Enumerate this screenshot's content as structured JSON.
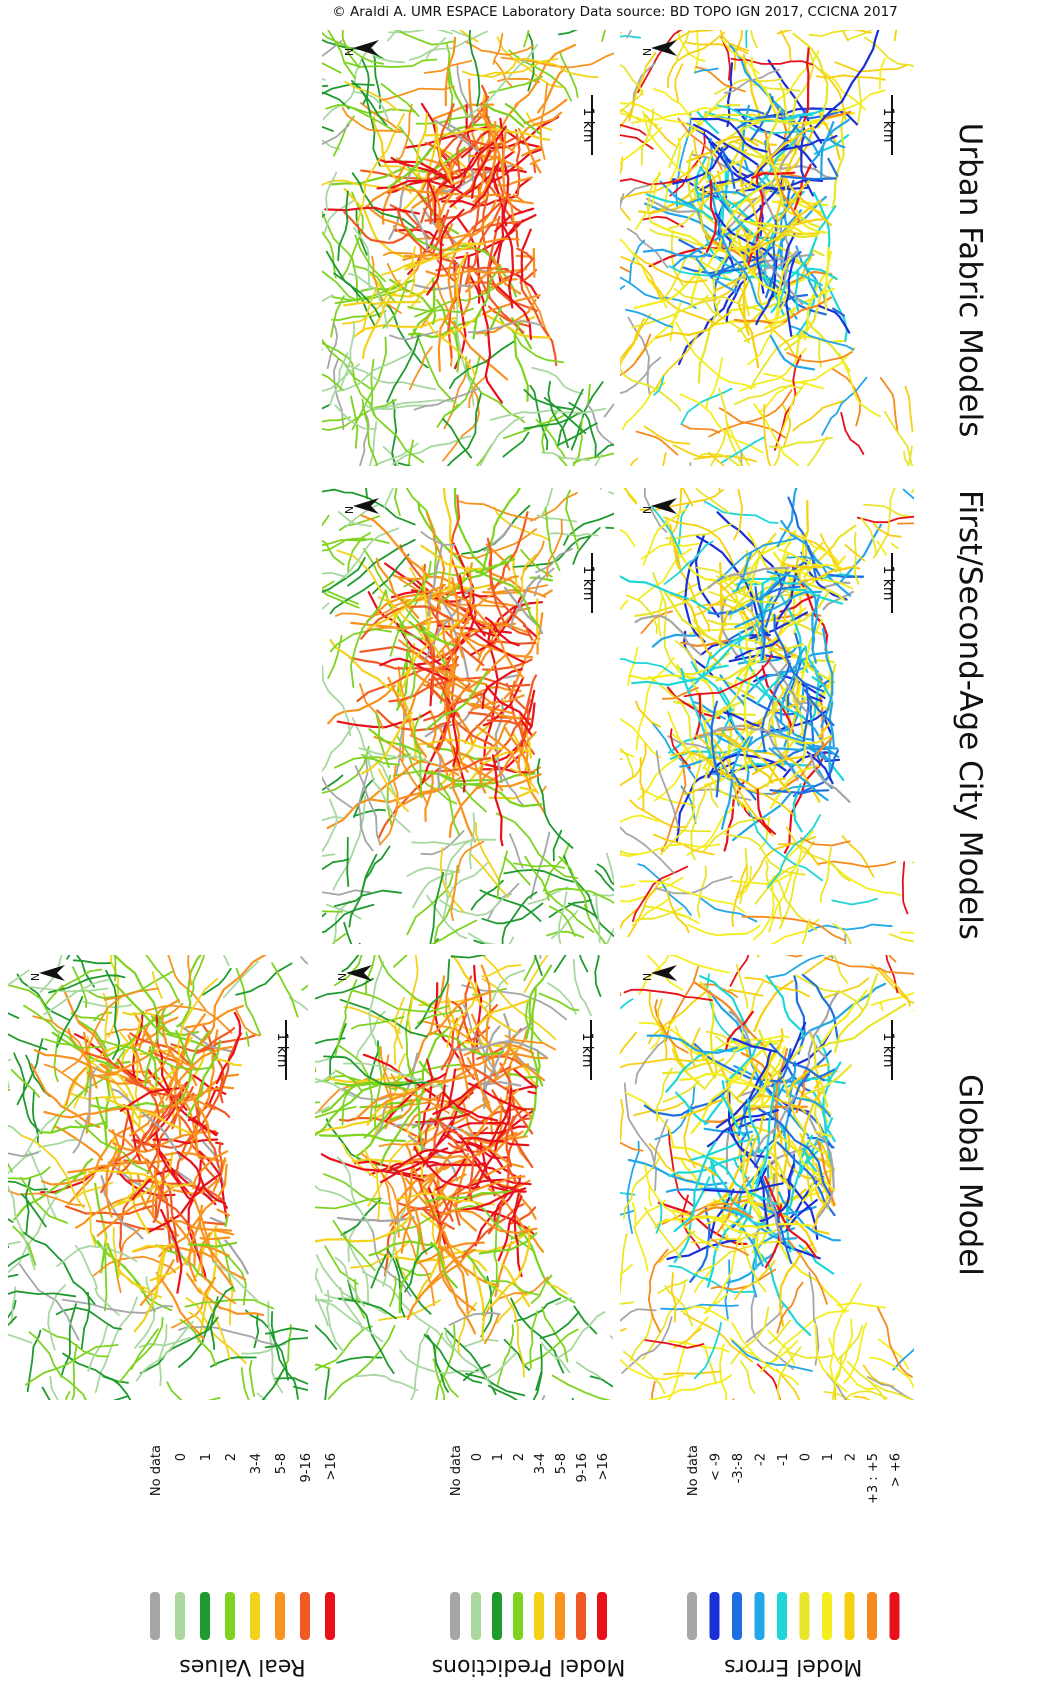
{
  "credit": "© Araldi A.  UMR ESPACE Laboratory Data source: BD TOPO IGN 2017, CCICNA 2017",
  "columns": [
    {
      "title": "Urban Fabric Models"
    },
    {
      "title": "First/Second-Age City Models"
    },
    {
      "title": "Global Model"
    }
  ],
  "panels": [
    {
      "north": "N",
      "scale": "1 km"
    },
    {
      "north": "N",
      "scale": "1 km"
    },
    {
      "north": "N",
      "scale": "1 km"
    },
    {
      "north": "N",
      "scale": "1 km"
    },
    {
      "north": "N",
      "scale": "1 km"
    },
    {
      "north": "N",
      "scale": "1 km"
    },
    {
      "north": "N",
      "scale": "1 km"
    }
  ],
  "legends": [
    {
      "title": "Real Values",
      "items": [
        {
          "label": "No data",
          "color": "#a6a6a6"
        },
        {
          "label": "0",
          "color": "#a8d8a0"
        },
        {
          "label": "1",
          "color": "#1e9a2e"
        },
        {
          "label": "2",
          "color": "#7ed321"
        },
        {
          "label": "3-4",
          "color": "#f2d21b"
        },
        {
          "label": "5-8",
          "color": "#f7931e"
        },
        {
          "label": "9-16",
          "color": "#f15a24"
        },
        {
          "label": ">16",
          "color": "#e8101a"
        }
      ]
    },
    {
      "title": "Model Predictions",
      "items": [
        {
          "label": "No data",
          "color": "#a6a6a6"
        },
        {
          "label": "0",
          "color": "#a8d8a0"
        },
        {
          "label": "1",
          "color": "#1e9a2e"
        },
        {
          "label": "2",
          "color": "#7ed321"
        },
        {
          "label": "3-4",
          "color": "#f2d21b"
        },
        {
          "label": "5-8",
          "color": "#f7931e"
        },
        {
          "label": "9-16",
          "color": "#f15a24"
        },
        {
          "label": ">16",
          "color": "#e8101a"
        }
      ]
    },
    {
      "title": "Model Errors",
      "items": [
        {
          "label": "No data",
          "color": "#a6a6a6"
        },
        {
          "label": "< -9",
          "color": "#1a2fd6"
        },
        {
          "label": "-3:-8",
          "color": "#1f6fe0"
        },
        {
          "label": "-2",
          "color": "#22a6e8"
        },
        {
          "label": "-1",
          "color": "#1fd6d6"
        },
        {
          "label": "0",
          "color": "#e8e62a"
        },
        {
          "label": "1",
          "color": "#f4ee1e"
        },
        {
          "label": "2",
          "color": "#f6d010"
        },
        {
          "label": "+3 : +5",
          "color": "#f58a1f"
        },
        {
          "label": "> +6",
          "color": "#e8101a"
        }
      ]
    }
  ]
}
